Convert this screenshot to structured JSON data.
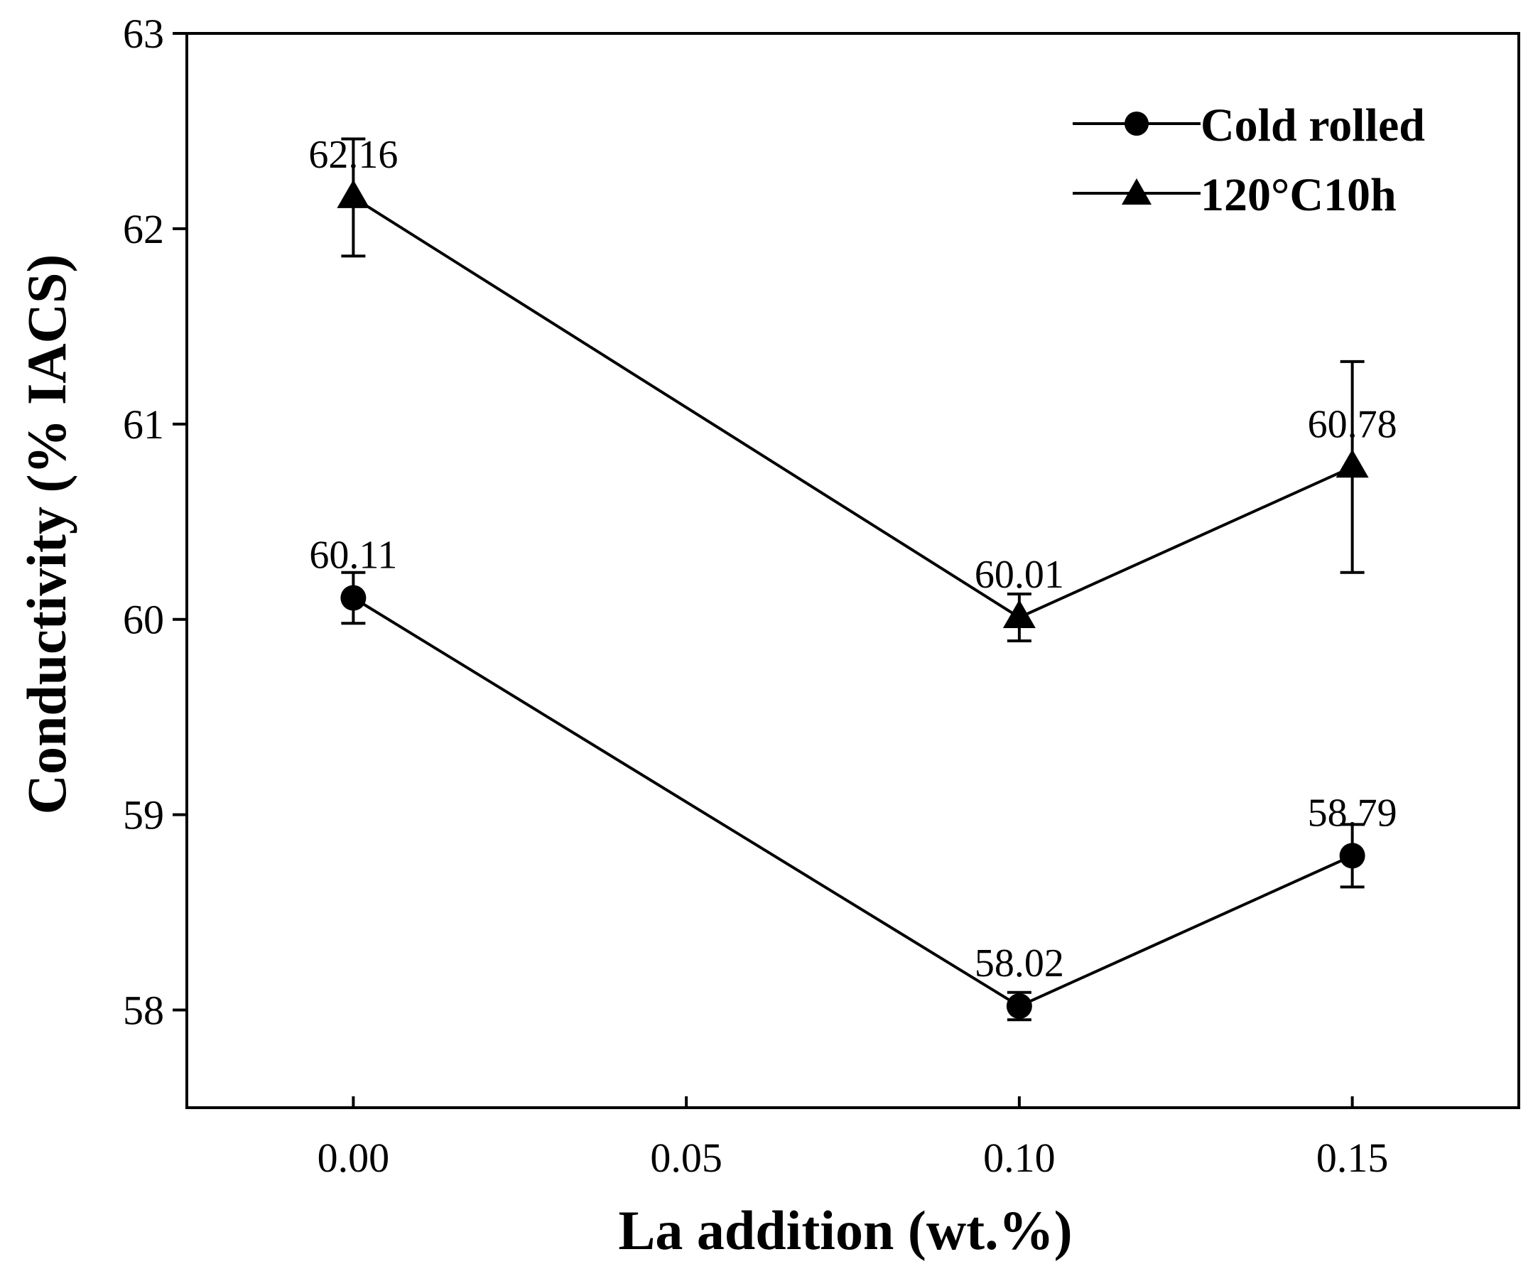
{
  "chart_data": {
    "type": "line",
    "title": "",
    "xlabel": "La addition (wt.%)",
    "ylabel": "Conductivity (% IACS)",
    "xlim": [
      -0.025,
      0.175
    ],
    "ylim": [
      57.5,
      63
    ],
    "xticks": [
      0.0,
      0.05,
      0.1,
      0.15
    ],
    "xtick_labels": [
      "0.00",
      "0.05",
      "0.10",
      "0.15"
    ],
    "yticks": [
      58,
      59,
      60,
      61,
      62,
      63
    ],
    "ytick_labels": [
      "58",
      "59",
      "60",
      "61",
      "62",
      "63"
    ],
    "grid": false,
    "legend_position": "top-right",
    "series": [
      {
        "name": "Cold rolled",
        "marker": "circle",
        "x": [
          0.0,
          0.1,
          0.15
        ],
        "values": [
          60.11,
          58.02,
          58.79
        ],
        "errors": [
          0.13,
          0.07,
          0.16
        ],
        "data_labels": [
          "60.11",
          "58.02",
          "58.79"
        ]
      },
      {
        "name": "120°C10h",
        "marker": "triangle",
        "x": [
          0.0,
          0.1,
          0.15
        ],
        "values": [
          62.16,
          60.01,
          60.78
        ],
        "errors": [
          0.3,
          0.12,
          0.54
        ],
        "data_labels": [
          "62.16",
          "60.01",
          "60.78"
        ]
      }
    ]
  }
}
